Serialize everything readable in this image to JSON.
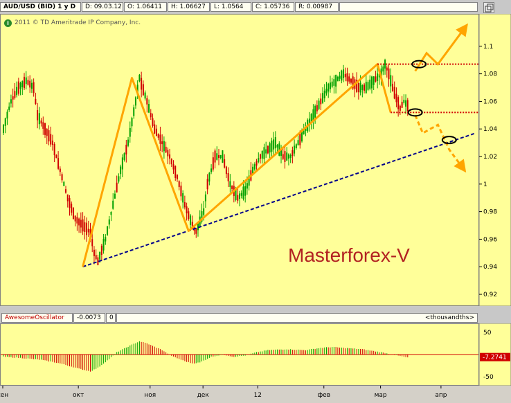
{
  "header": {
    "symbol": "AUD/USD (BID) 1 y D",
    "date": "D: 09.03.12",
    "open": "O: 1.06411",
    "high": "H: 1.06627",
    "low": "L: 1.0564",
    "close": "C: 1.05736",
    "range": "R: 0.00987"
  },
  "copyright": "2011 © TD Ameritrade IP Company, Inc.",
  "watermark": "Masterforex-V",
  "oscillator": {
    "name": "AwesomeOscillator",
    "value": "-0.0073",
    "param": "0",
    "units": "<thousandths>",
    "current_label": "-7.2741"
  },
  "colors": {
    "up": "#00a000",
    "down": "#d00000",
    "pattern": "#ffa500",
    "trendline": "#00008b",
    "level": "#d00000",
    "panel": "#ffff99"
  },
  "chart_data": [
    {
      "type": "candlestick",
      "ylim": [
        0.915,
        1.12
      ],
      "y_ticks": [
        0.92,
        0.94,
        0.96,
        0.98,
        1,
        1.02,
        1.04,
        1.06,
        1.08,
        1.1
      ],
      "x_labels": [
        "сен",
        "окт",
        "ноя",
        "дек",
        "12",
        "фев",
        "мар",
        "апр"
      ],
      "price_path": [
        [
          0,
          1.04
        ],
        [
          4,
          1.06
        ],
        [
          8,
          1.07
        ],
        [
          12,
          1.075
        ],
        [
          16,
          1.07
        ],
        [
          18,
          1.05
        ],
        [
          22,
          1.04
        ],
        [
          26,
          1.03
        ],
        [
          30,
          1.01
        ],
        [
          34,
          0.99
        ],
        [
          38,
          0.975
        ],
        [
          42,
          0.97
        ],
        [
          46,
          0.965
        ],
        [
          48,
          0.95
        ],
        [
          50,
          0.944
        ],
        [
          54,
          0.96
        ],
        [
          58,
          0.985
        ],
        [
          62,
          1.01
        ],
        [
          66,
          1.03
        ],
        [
          70,
          1.06
        ],
        [
          72,
          1.077
        ],
        [
          76,
          1.06
        ],
        [
          80,
          1.04
        ],
        [
          84,
          1.03
        ],
        [
          88,
          1.02
        ],
        [
          92,
          1.005
        ],
        [
          96,
          0.985
        ],
        [
          100,
          0.97
        ],
        [
          102,
          0.966
        ],
        [
          106,
          0.98
        ],
        [
          108,
          1.0
        ],
        [
          112,
          1.02
        ],
        [
          116,
          1.02
        ],
        [
          120,
          1.0
        ],
        [
          124,
          0.99
        ],
        [
          128,
          0.995
        ],
        [
          132,
          1.01
        ],
        [
          136,
          1.02
        ],
        [
          140,
          1.025
        ],
        [
          144,
          1.03
        ],
        [
          148,
          1.02
        ],
        [
          152,
          1.02
        ],
        [
          156,
          1.03
        ],
        [
          160,
          1.04
        ],
        [
          164,
          1.05
        ],
        [
          168,
          1.06
        ],
        [
          172,
          1.07
        ],
        [
          176,
          1.075
        ],
        [
          180,
          1.08
        ],
        [
          184,
          1.075
        ],
        [
          188,
          1.07
        ],
        [
          192,
          1.07
        ],
        [
          196,
          1.075
        ],
        [
          200,
          1.08
        ],
        [
          202,
          1.087
        ],
        [
          204,
          1.08
        ],
        [
          206,
          1.07
        ],
        [
          210,
          1.055
        ],
        [
          212,
          1.06
        ],
        [
          214,
          1.057
        ]
      ],
      "x_max": 250,
      "label_positions": [
        0,
        40,
        78,
        106,
        135,
        170,
        200,
        232
      ],
      "annotations": {
        "zigzag": [
          [
            42,
            0.94
          ],
          [
            68,
            1.077
          ],
          [
            98,
            0.966
          ],
          [
            198,
            1.087
          ],
          [
            205,
            1.052
          ]
        ],
        "trendline": [
          [
            42,
            0.94
          ],
          [
            250,
            1.037
          ]
        ],
        "level_upper": {
          "from": 198,
          "to": 253,
          "y": 1.087
        },
        "level_lower": {
          "from": 205,
          "to": 253,
          "y": 1.052
        },
        "bull_path": [
          [
            218,
            1.082
          ],
          [
            224,
            1.095
          ],
          [
            230,
            1.087
          ],
          [
            244,
            1.113
          ]
        ],
        "bear_path": [
          [
            218,
            1.05
          ],
          [
            222,
            1.037
          ],
          [
            230,
            1.043
          ],
          [
            236,
            1.025
          ],
          [
            243,
            1.012
          ]
        ],
        "ellipses": [
          [
            220,
            1.087
          ],
          [
            218,
            1.052
          ],
          [
            236,
            1.032
          ]
        ]
      }
    },
    {
      "type": "bar",
      "name": "AwesomeOscillator",
      "ylim": [
        -50,
        50
      ],
      "y_ticks": [
        50,
        -50
      ],
      "bars_path": [
        [
          0,
          -5
        ],
        [
          10,
          -8
        ],
        [
          20,
          -12
        ],
        [
          30,
          -20
        ],
        [
          40,
          -32
        ],
        [
          46,
          -38
        ],
        [
          50,
          -30
        ],
        [
          56,
          -10
        ],
        [
          60,
          5
        ],
        [
          66,
          18
        ],
        [
          72,
          30
        ],
        [
          76,
          25
        ],
        [
          84,
          10
        ],
        [
          90,
          -5
        ],
        [
          96,
          -15
        ],
        [
          100,
          -20
        ],
        [
          104,
          -18
        ],
        [
          110,
          -5
        ],
        [
          116,
          0
        ],
        [
          122,
          -5
        ],
        [
          128,
          -2
        ],
        [
          134,
          5
        ],
        [
          140,
          10
        ],
        [
          150,
          12
        ],
        [
          160,
          10
        ],
        [
          168,
          15
        ],
        [
          174,
          17
        ],
        [
          180,
          15
        ],
        [
          190,
          12
        ],
        [
          200,
          5
        ],
        [
          206,
          0
        ],
        [
          212,
          -5
        ],
        [
          214,
          -7
        ]
      ]
    }
  ]
}
